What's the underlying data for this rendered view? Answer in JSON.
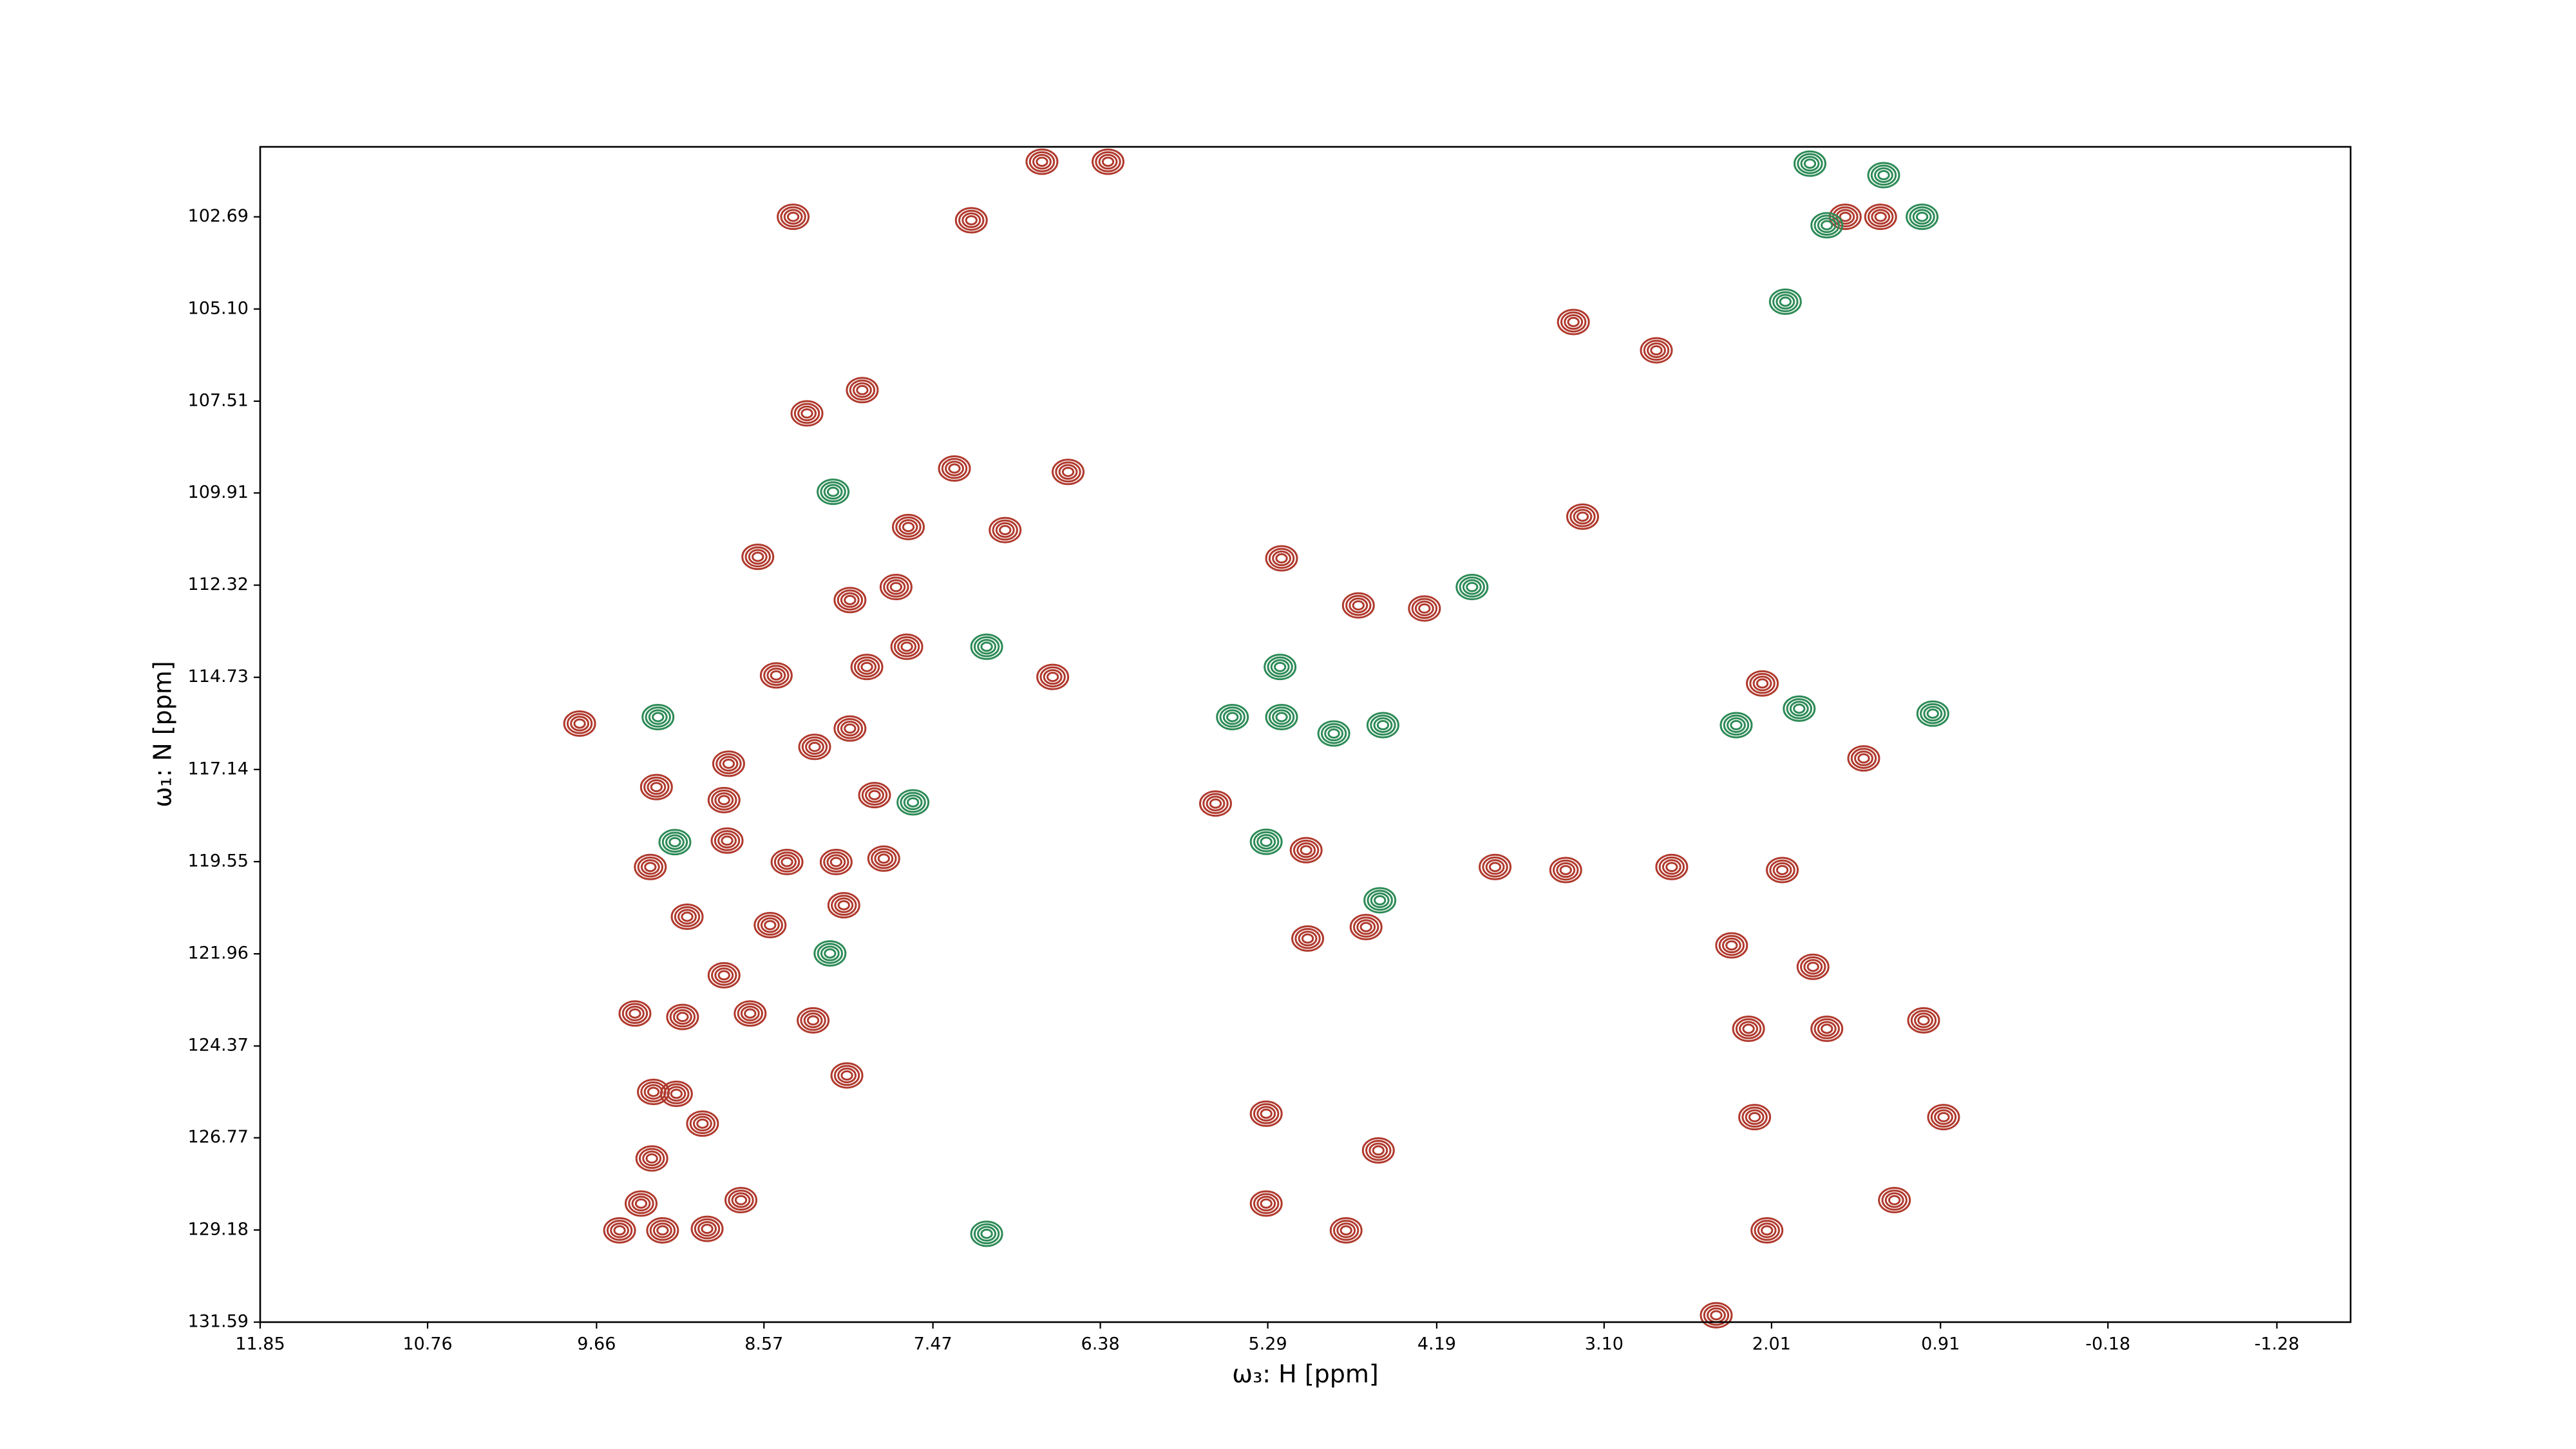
{
  "chart_data": {
    "type": "scatter",
    "x_label": "ω₃: H [ppm]",
    "y_label": "ω₁: N [ppm]",
    "xlim": [
      11.85,
      -1.76
    ],
    "ylim": [
      131.59,
      100.86
    ],
    "xticks": [
      11.85,
      10.76,
      9.66,
      8.57,
      7.47,
      6.38,
      5.29,
      4.19,
      {
        "value": 3.1,
        "label": "3.10"
      },
      2.01,
      0.91,
      -0.18,
      -1.28
    ],
    "yticks": [
      102.69,
      {
        "value": 105.1,
        "label": "105.10"
      },
      107.51,
      109.91,
      112.32,
      114.73,
      117.14,
      119.55,
      121.96,
      124.37,
      126.77,
      129.18,
      131.59
    ],
    "series": [
      {
        "color": "#b03a2e",
        "x": [
          8.38,
          7.22,
          7.93,
          8.29,
          7.33,
          6.59,
          7.63,
          8.61,
          7.0,
          7.71,
          8.01,
          7.64,
          8.49,
          7.9,
          6.69,
          9.77,
          8.24,
          8.01,
          9.27,
          8.8,
          8.83,
          7.85,
          8.81,
          8.42,
          8.1,
          7.79,
          9.31,
          9.07,
          8.05,
          8.53,
          8.83,
          8.66,
          9.41,
          9.1,
          8.25,
          8.03,
          9.29,
          9.14,
          8.97,
          9.3,
          9.37,
          9.51,
          9.23,
          8.94,
          8.72,
          6.76,
          6.33,
          3.3,
          2.76,
          3.24,
          5.2,
          4.7,
          4.27,
          5.63,
          5.04,
          3.81,
          3.35,
          2.66,
          1.94,
          2.27,
          1.74,
          5.03,
          4.65,
          2.16,
          1.65,
          1.02,
          5.3,
          4.57,
          2.12,
          0.89,
          5.3,
          4.78,
          2.04,
          1.21,
          2.37,
          1.3,
          1.53,
          2.07,
          1.41
        ],
        "values": [
          102.69,
          102.78,
          107.22,
          107.83,
          109.27,
          109.36,
          110.8,
          111.58,
          110.88,
          112.37,
          112.71,
          113.93,
          114.68,
          114.46,
          114.72,
          115.94,
          116.55,
          116.07,
          117.6,
          116.99,
          117.94,
          117.81,
          119.0,
          119.56,
          119.56,
          119.47,
          119.69,
          120.99,
          120.69,
          121.21,
          122.52,
          123.52,
          123.52,
          123.61,
          123.7,
          125.14,
          125.57,
          125.62,
          126.4,
          127.31,
          128.49,
          129.19,
          129.19,
          129.15,
          128.4,
          101.25,
          101.25,
          105.44,
          106.18,
          110.53,
          111.62,
          112.85,
          112.93,
          118.03,
          119.25,
          119.69,
          119.77,
          119.69,
          119.77,
          121.74,
          122.3,
          121.56,
          121.26,
          123.92,
          123.92,
          123.7,
          126.14,
          127.1,
          126.23,
          126.23,
          128.49,
          129.19,
          129.19,
          128.4,
          131.41,
          102.69,
          102.69,
          114.89,
          116.85
        ]
      },
      {
        "color": "#2e8b57",
        "x": [
          1.92,
          1.65,
          1.03,
          1.76,
          1.28,
          5.21,
          5.52,
          5.2,
          4.86,
          4.54,
          5.3,
          4.56,
          7.12,
          7.6,
          3.96,
          2.24,
          1.83,
          0.96,
          8.14,
          9.15,
          7.12,
          9.26,
          8.12
        ],
        "values": [
          104.91,
          102.91,
          102.69,
          101.3,
          101.6,
          114.46,
          115.77,
          115.77,
          116.2,
          115.98,
          119.03,
          120.56,
          113.93,
          118.0,
          112.37,
          115.98,
          115.55,
          115.68,
          121.95,
          119.04,
          129.28,
          115.77,
          109.88
        ]
      }
    ]
  }
}
